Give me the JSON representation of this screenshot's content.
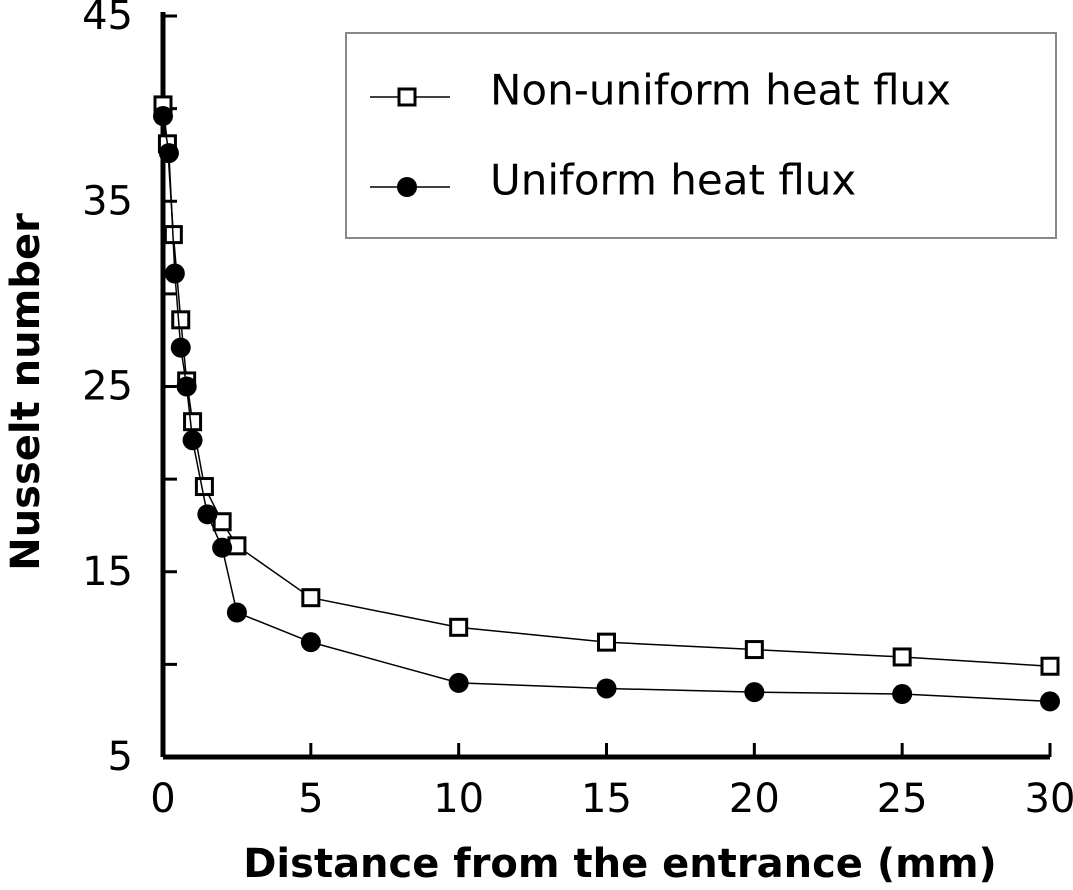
{
  "chart_data": {
    "type": "line",
    "x_label": "Distance from the entrance  (mm)",
    "y_label": "Nusselt number",
    "xlim": [
      0,
      30
    ],
    "xticks": [
      0,
      5,
      10,
      15,
      20,
      25,
      30
    ],
    "ylim": [
      5,
      45
    ],
    "yticks": [
      5,
      15,
      25,
      35,
      45
    ],
    "yminor_ticks": [
      10,
      20,
      30,
      40
    ],
    "series": [
      {
        "name": "Non-uniform heat flux",
        "color": "#000000",
        "marker": "square",
        "x": [
          0,
          0.15,
          0.35,
          0.6,
          0.8,
          1.0,
          1.4,
          2.0,
          2.5,
          5,
          10,
          15,
          20,
          25,
          30
        ],
        "values": [
          40.2,
          38.1,
          33.2,
          28.6,
          25.3,
          23.1,
          19.6,
          17.7,
          16.4,
          13.6,
          12.0,
          11.2,
          10.8,
          10.4,
          9.9
        ]
      },
      {
        "name": "Uniform heat flux",
        "color": "#000000",
        "marker": "circle",
        "x": [
          0,
          0.2,
          0.4,
          0.6,
          0.8,
          1.0,
          1.5,
          2.0,
          2.5,
          5,
          10,
          15,
          20,
          25,
          30
        ],
        "values": [
          39.6,
          37.6,
          31.1,
          27.1,
          25.0,
          22.1,
          18.1,
          16.3,
          12.8,
          11.2,
          9.0,
          8.7,
          8.5,
          8.4,
          8.0
        ]
      }
    ]
  }
}
